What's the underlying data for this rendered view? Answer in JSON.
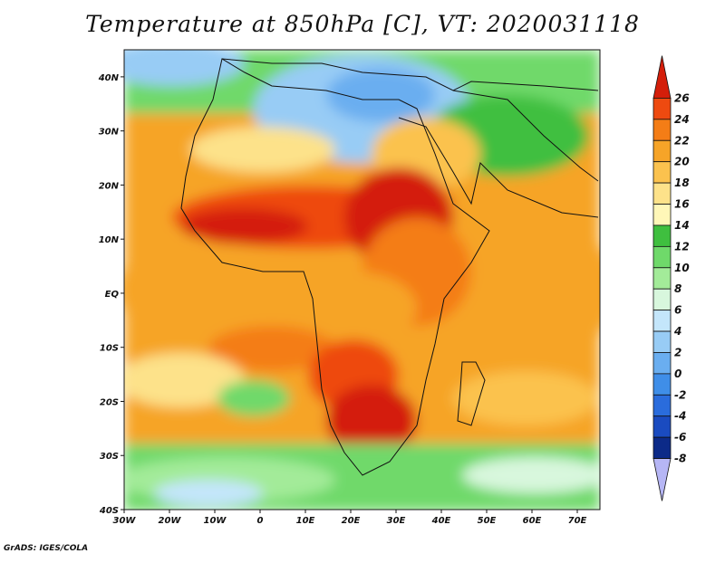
{
  "title": "Temperature at 850hPa [C], VT: 2020031118",
  "credit": "GrADS: IGES/COLA",
  "map": {
    "lon_range": [
      -30,
      75
    ],
    "lat_range": [
      -40,
      45
    ],
    "lon_ticks": [
      {
        "lon": -30,
        "label": "30W"
      },
      {
        "lon": -20,
        "label": "20W"
      },
      {
        "lon": -10,
        "label": "10W"
      },
      {
        "lon": 0,
        "label": "0"
      },
      {
        "lon": 10,
        "label": "10E"
      },
      {
        "lon": 20,
        "label": "20E"
      },
      {
        "lon": 30,
        "label": "30E"
      },
      {
        "lon": 40,
        "label": "40E"
      },
      {
        "lon": 50,
        "label": "50E"
      },
      {
        "lon": 60,
        "label": "60E"
      },
      {
        "lon": 70,
        "label": "70E"
      }
    ],
    "lat_ticks": [
      {
        "lat": 40,
        "label": "40N"
      },
      {
        "lat": 30,
        "label": "30N"
      },
      {
        "lat": 20,
        "label": "20N"
      },
      {
        "lat": 10,
        "label": "10N"
      },
      {
        "lat": 0,
        "label": "EQ"
      },
      {
        "lat": -10,
        "label": "10S"
      },
      {
        "lat": -20,
        "label": "20S"
      },
      {
        "lat": -30,
        "label": "30S"
      },
      {
        "lat": -40,
        "label": "40S"
      }
    ]
  },
  "colorbar": {
    "levels": [
      "26",
      "24",
      "22",
      "20",
      "18",
      "16",
      "14",
      "12",
      "10",
      "8",
      "6",
      "4",
      "2",
      "0",
      "-2",
      "-4",
      "-6",
      "-8"
    ],
    "colors": [
      "#d41e0a",
      "#ee4a10",
      "#f47d16",
      "#f6a428",
      "#fbc24e",
      "#fde28a",
      "#fff7b8",
      "#3fbf3f",
      "#6fd96a",
      "#a3eb99",
      "#d8f7dd",
      "#c4e6fb",
      "#98ccf5",
      "#6aaef0",
      "#3f8ee8",
      "#2a6cdc",
      "#1a4bc0",
      "#0c2a88",
      "#b6b6f5"
    ]
  }
}
